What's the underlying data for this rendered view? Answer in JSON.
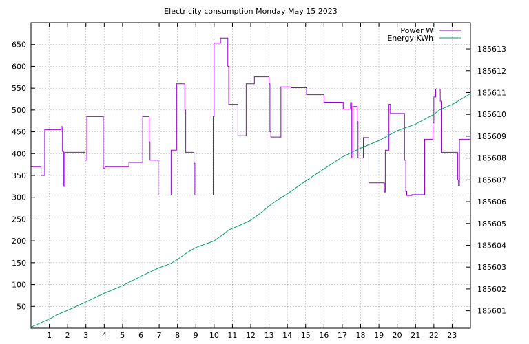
{
  "chart_data": {
    "type": "line",
    "title": "Electricity consumption Monday May 15 2023",
    "xlabel": "",
    "ylabel": "",
    "y2label": "",
    "grid": true,
    "legend_position": "top-right",
    "xlim": [
      0,
      24
    ],
    "ylim": [
      0,
      700
    ],
    "y2lim": [
      185600.2,
      185614.2
    ],
    "x_ticks": [
      1,
      2,
      3,
      4,
      5,
      6,
      7,
      8,
      9,
      10,
      11,
      12,
      13,
      14,
      15,
      16,
      17,
      18,
      19,
      20,
      21,
      22,
      23
    ],
    "y_ticks": [
      50,
      100,
      150,
      200,
      250,
      300,
      350,
      400,
      450,
      500,
      550,
      600,
      650
    ],
    "y2_ticks": [
      185601,
      185602,
      185603,
      185604,
      185605,
      185606,
      185607,
      185608,
      185609,
      185610,
      185611,
      185612,
      185613
    ],
    "series": [
      {
        "name": "Power W",
        "axis": "y1",
        "color": "#9400d3",
        "step": true,
        "points": [
          [
            0.0,
            370
          ],
          [
            0.55,
            370
          ],
          [
            0.55,
            350
          ],
          [
            0.75,
            350
          ],
          [
            0.75,
            455
          ],
          [
            1.65,
            455
          ],
          [
            1.65,
            462
          ],
          [
            1.72,
            462
          ],
          [
            1.72,
            405
          ],
          [
            1.78,
            405
          ],
          [
            1.78,
            325
          ],
          [
            1.84,
            325
          ],
          [
            1.84,
            403
          ],
          [
            2.95,
            403
          ],
          [
            2.95,
            385
          ],
          [
            3.05,
            385
          ],
          [
            3.05,
            485
          ],
          [
            3.95,
            485
          ],
          [
            3.95,
            367
          ],
          [
            4.05,
            367
          ],
          [
            4.05,
            370
          ],
          [
            5.35,
            370
          ],
          [
            5.35,
            380
          ],
          [
            6.1,
            380
          ],
          [
            6.1,
            485
          ],
          [
            6.45,
            485
          ],
          [
            6.45,
            427
          ],
          [
            6.5,
            427
          ],
          [
            6.5,
            385
          ],
          [
            6.95,
            385
          ],
          [
            6.95,
            305
          ],
          [
            7.65,
            305
          ],
          [
            7.65,
            408
          ],
          [
            7.95,
            408
          ],
          [
            7.95,
            560
          ],
          [
            8.4,
            560
          ],
          [
            8.4,
            500
          ],
          [
            8.45,
            500
          ],
          [
            8.45,
            403
          ],
          [
            8.9,
            403
          ],
          [
            8.9,
            378
          ],
          [
            8.95,
            378
          ],
          [
            8.95,
            305
          ],
          [
            9.95,
            305
          ],
          [
            9.95,
            485
          ],
          [
            10.0,
            485
          ],
          [
            10.0,
            653
          ],
          [
            10.35,
            653
          ],
          [
            10.35,
            665
          ],
          [
            10.75,
            665
          ],
          [
            10.75,
            600
          ],
          [
            10.8,
            600
          ],
          [
            10.8,
            513
          ],
          [
            11.3,
            513
          ],
          [
            11.3,
            441
          ],
          [
            11.75,
            441
          ],
          [
            11.75,
            560
          ],
          [
            12.2,
            560
          ],
          [
            12.2,
            576
          ],
          [
            13.0,
            576
          ],
          [
            13.0,
            560
          ],
          [
            13.05,
            560
          ],
          [
            13.05,
            450
          ],
          [
            13.1,
            450
          ],
          [
            13.1,
            438
          ],
          [
            13.65,
            438
          ],
          [
            13.65,
            553
          ],
          [
            14.2,
            553
          ],
          [
            14.2,
            551
          ],
          [
            15.05,
            551
          ],
          [
            15.05,
            535
          ],
          [
            16.0,
            535
          ],
          [
            16.0,
            518
          ],
          [
            17.05,
            518
          ],
          [
            17.05,
            502
          ],
          [
            17.45,
            502
          ],
          [
            17.45,
            517
          ],
          [
            17.52,
            517
          ],
          [
            17.52,
            390
          ],
          [
            17.58,
            390
          ],
          [
            17.58,
            508
          ],
          [
            17.82,
            508
          ],
          [
            17.82,
            473
          ],
          [
            17.86,
            473
          ],
          [
            17.86,
            390
          ],
          [
            18.15,
            390
          ],
          [
            18.15,
            437
          ],
          [
            18.45,
            437
          ],
          [
            18.45,
            333
          ],
          [
            19.3,
            333
          ],
          [
            19.3,
            312
          ],
          [
            19.35,
            312
          ],
          [
            19.35,
            408
          ],
          [
            19.55,
            408
          ],
          [
            19.55,
            513
          ],
          [
            19.63,
            513
          ],
          [
            19.63,
            492
          ],
          [
            20.4,
            492
          ],
          [
            20.4,
            385
          ],
          [
            20.47,
            385
          ],
          [
            20.47,
            313
          ],
          [
            20.52,
            313
          ],
          [
            20.52,
            304
          ],
          [
            20.8,
            304
          ],
          [
            20.8,
            306
          ],
          [
            21.5,
            306
          ],
          [
            21.5,
            433
          ],
          [
            21.95,
            433
          ],
          [
            21.95,
            470
          ],
          [
            22.0,
            470
          ],
          [
            22.0,
            530
          ],
          [
            22.1,
            530
          ],
          [
            22.1,
            548
          ],
          [
            22.35,
            548
          ],
          [
            22.35,
            520
          ],
          [
            22.4,
            520
          ],
          [
            22.4,
            403
          ],
          [
            23.3,
            403
          ],
          [
            23.3,
            340
          ],
          [
            23.35,
            340
          ],
          [
            23.35,
            327
          ],
          [
            23.4,
            327
          ],
          [
            23.4,
            433
          ],
          [
            24.0,
            433
          ]
        ]
      },
      {
        "name": "Energy KWh",
        "axis": "y2",
        "color": "#009e73",
        "step": false,
        "points": [
          [
            0.0,
            185600.25
          ],
          [
            1.0,
            185600.62
          ],
          [
            1.6,
            185600.88
          ],
          [
            2.0,
            185601.02
          ],
          [
            3.0,
            185601.4
          ],
          [
            4.0,
            185601.8
          ],
          [
            5.0,
            185602.15
          ],
          [
            6.0,
            185602.58
          ],
          [
            7.0,
            185602.97
          ],
          [
            7.6,
            185603.15
          ],
          [
            8.0,
            185603.35
          ],
          [
            8.5,
            185603.65
          ],
          [
            9.0,
            185603.9
          ],
          [
            10.0,
            185604.2
          ],
          [
            10.5,
            185604.5
          ],
          [
            10.8,
            185604.7
          ],
          [
            11.5,
            185604.95
          ],
          [
            12.0,
            185605.15
          ],
          [
            12.5,
            185605.45
          ],
          [
            13.0,
            185605.8
          ],
          [
            13.5,
            185606.1
          ],
          [
            14.0,
            185606.35
          ],
          [
            15.0,
            185606.95
          ],
          [
            16.0,
            185607.5
          ],
          [
            17.0,
            185608.05
          ],
          [
            18.0,
            185608.45
          ],
          [
            19.0,
            185608.8
          ],
          [
            20.0,
            185609.25
          ],
          [
            21.0,
            185609.55
          ],
          [
            22.0,
            185610.0
          ],
          [
            22.3,
            185610.2
          ],
          [
            23.0,
            185610.45
          ],
          [
            24.0,
            185610.95
          ]
        ]
      }
    ]
  }
}
